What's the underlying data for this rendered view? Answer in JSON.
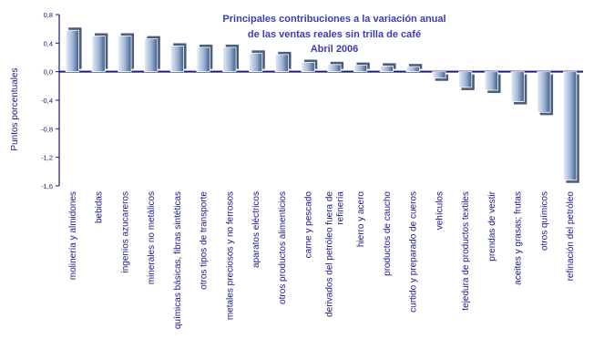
{
  "chart_data": {
    "type": "bar",
    "title_lines": [
      "Principales contribuciones a la variación anual",
      "de las ventas reales  sin trilla de café",
      "Abril 2006"
    ],
    "ylabel": "Puntos porcentuales",
    "xlabel": "",
    "ylim": [
      -1.6,
      0.8
    ],
    "yticks": [
      "0,8",
      "0,4",
      "0,0",
      "-0,4",
      "-0,8",
      "-1,2",
      "-1,6"
    ],
    "ytick_values": [
      0.8,
      0.4,
      0.0,
      -0.4,
      -0.8,
      -1.2,
      -1.6
    ],
    "grid": false,
    "legend": "none",
    "categories": [
      [
        "molinería y almidones"
      ],
      [
        "bebidas"
      ],
      [
        "ingenios azucareros"
      ],
      [
        "minerales no metálicos"
      ],
      [
        "químicas básicas, fibras sintéticas"
      ],
      [
        "otros tipos de transporte"
      ],
      [
        "metales preciosos y  no ferrosos"
      ],
      [
        "aparatos eléctricos"
      ],
      [
        "otros productos alimenticios"
      ],
      [
        "carne y pescado"
      ],
      [
        "derivados del petróleo fuera de",
        "refinería"
      ],
      [
        "hierro y acero"
      ],
      [
        "productos de caucho"
      ],
      [
        "curtido y preparado de cueros"
      ],
      [
        "vehículos"
      ],
      [
        "tejedura de productos textiles"
      ],
      [
        "prendas de vestir"
      ],
      [
        "aceites y grasas; frutas"
      ],
      [
        "otros químicos"
      ],
      [
        "refinación del petróleo"
      ]
    ],
    "values": [
      0.58,
      0.5,
      0.5,
      0.46,
      0.36,
      0.34,
      0.34,
      0.26,
      0.24,
      0.13,
      0.1,
      0.09,
      0.08,
      0.07,
      -0.09,
      -0.22,
      -0.26,
      -0.42,
      -0.57,
      -1.52
    ],
    "colors": {
      "bar_light": "#e6eef8",
      "bar_mid": "#9cb2d2",
      "bar_dark": "#3d5e8c",
      "axis": "#1a1a7a",
      "title": "#3b3bb5",
      "label": "#1a1a8c"
    }
  }
}
